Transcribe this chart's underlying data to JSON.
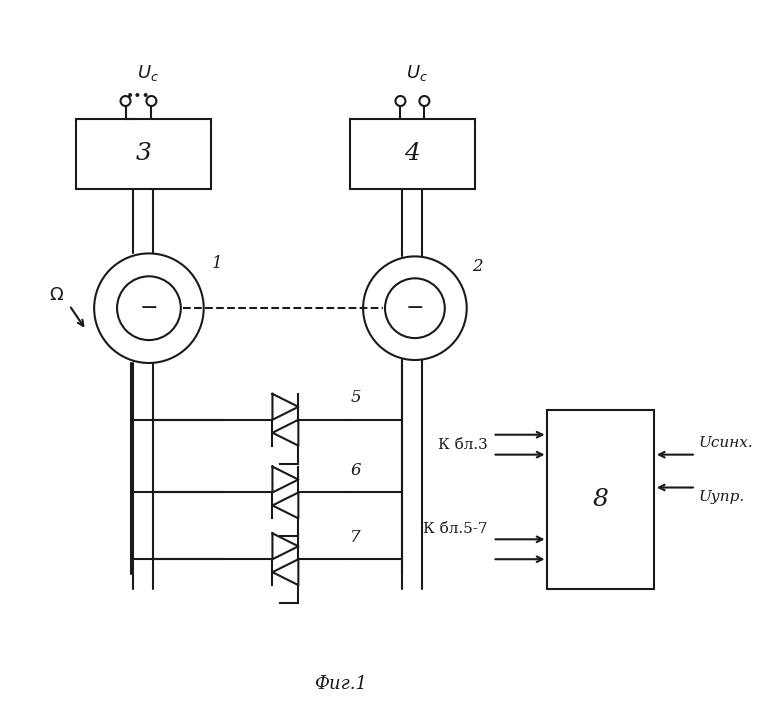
{
  "fig_width": 7.8,
  "fig_height": 7.21,
  "dpi": 100,
  "bg_color": "#ffffff",
  "line_color": "#1a1a1a",
  "caption": "Фиг.1",
  "block3_label": "3",
  "block4_label": "4",
  "block8_label": "8",
  "motor1_label": "1",
  "motor2_label": "2",
  "thyristor5_label": "5",
  "thyristor6_label": "6",
  "thyristor7_label": "7",
  "uc_label": "u_c",
  "omega_label": "Ω",
  "kbl3_label": "К бл.3",
  "kbl57_label": "К бл.5-7",
  "usinx_label": "Uсинх.",
  "uupr_label": "Uупр."
}
